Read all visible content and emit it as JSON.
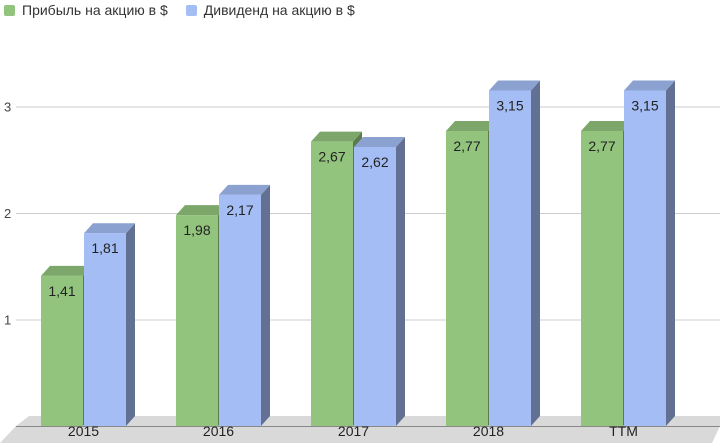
{
  "legend": {
    "series0": "Прибыль на акцию в $",
    "series1": "Дивиденд на акцию в $"
  },
  "colors": {
    "series0": "#93c47d",
    "series1": "#a4bdf5",
    "floor": "#d9d9d9",
    "grid": "#cccccc"
  },
  "chart_data": {
    "type": "bar",
    "title": "",
    "xlabel": "",
    "ylabel": "",
    "categories": [
      "2015",
      "2016",
      "2017",
      "2018",
      "TTM"
    ],
    "series": [
      {
        "name": "Прибыль на акцию в $",
        "values": [
          1.41,
          1.98,
          2.67,
          2.77,
          2.77
        ],
        "labels": [
          "1,41",
          "1,98",
          "2,67",
          "2,77",
          "2,77"
        ]
      },
      {
        "name": "Дивиденд на акцию в $",
        "values": [
          1.81,
          2.17,
          2.62,
          3.15,
          3.15
        ],
        "labels": [
          "1,81",
          "2,17",
          "2,62",
          "3,15",
          "3,15"
        ]
      }
    ],
    "ylim": [
      0,
      3.2
    ],
    "yticks": [
      "1",
      "2",
      "3"
    ],
    "grid": true,
    "legend_position": "top-left",
    "style": "3d-bar"
  }
}
